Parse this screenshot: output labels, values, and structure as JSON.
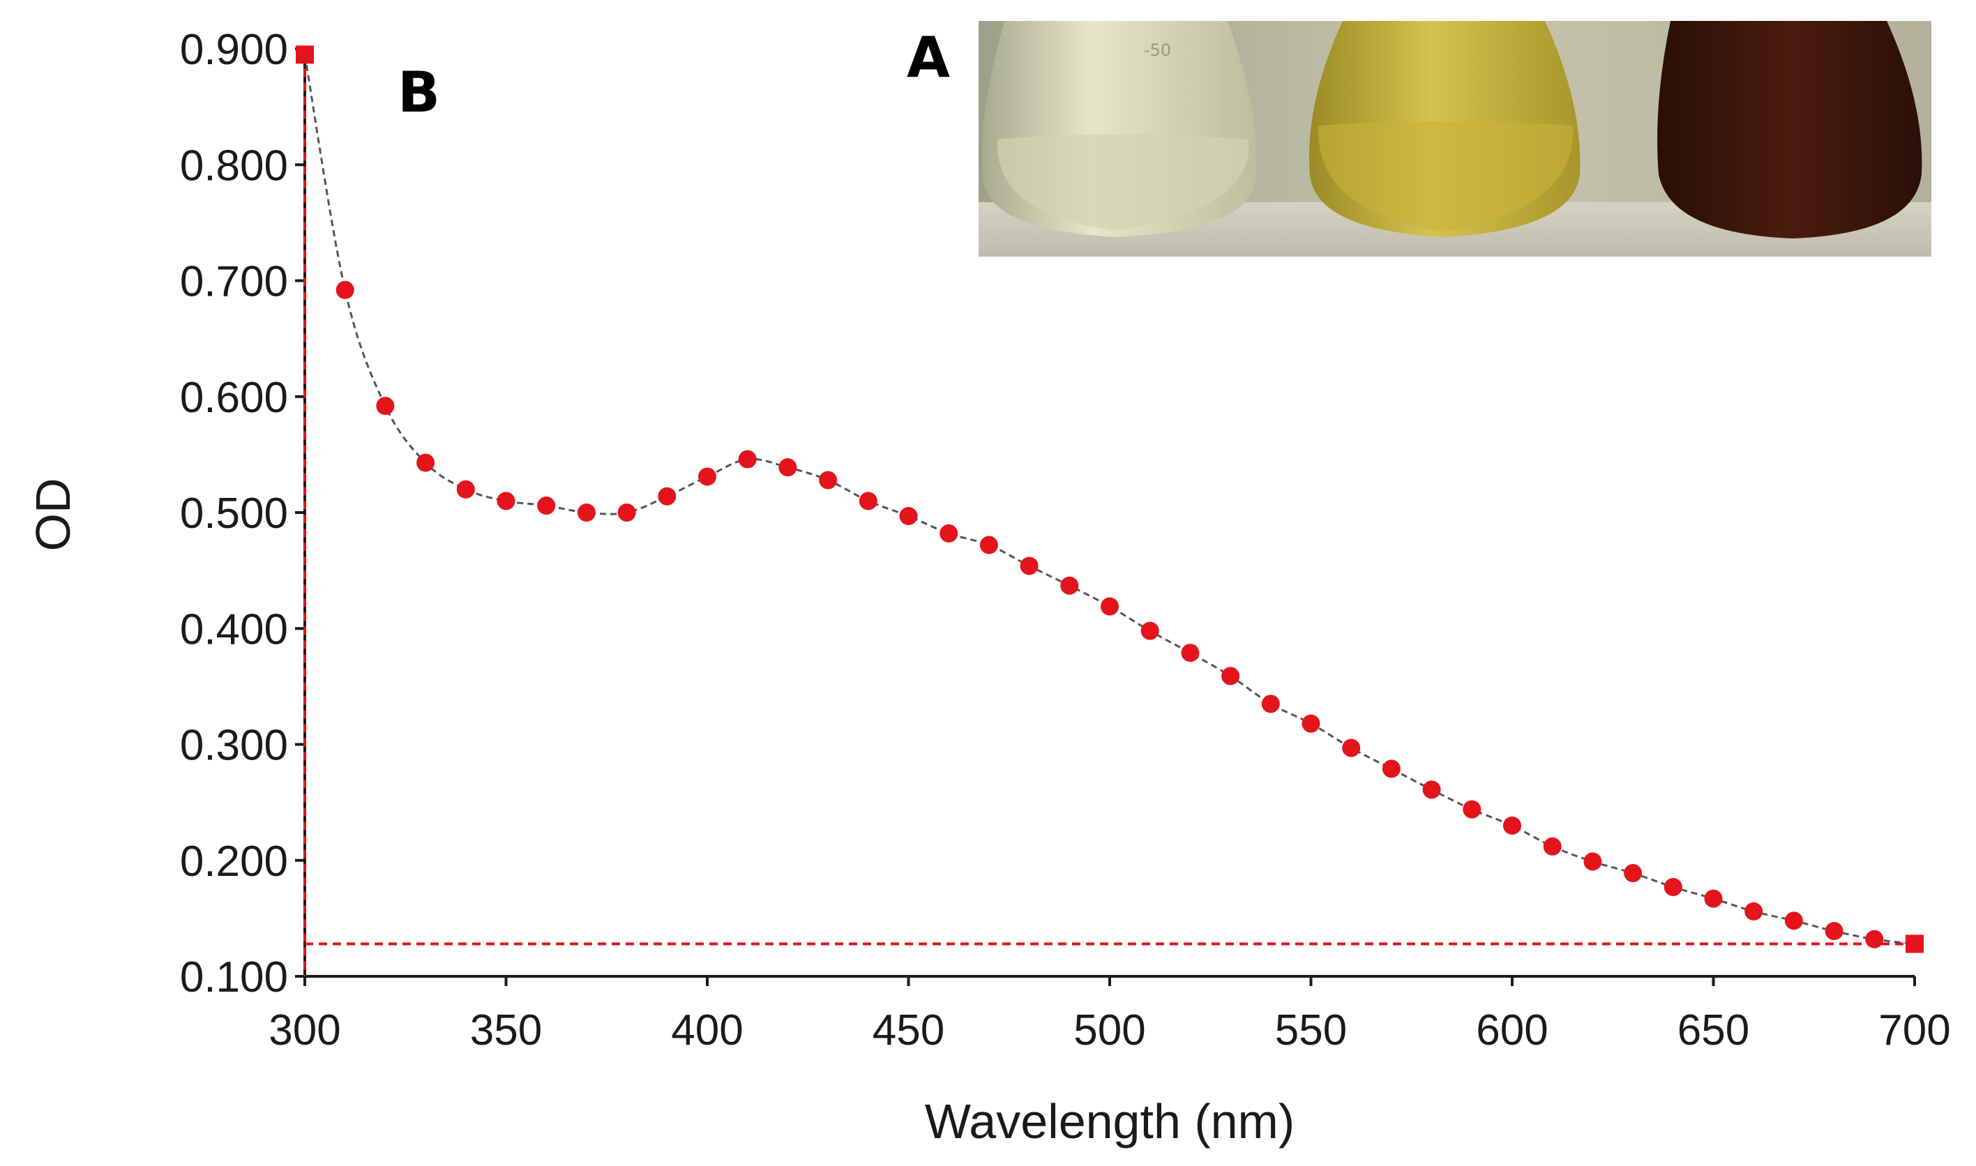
{
  "chart_data": {
    "type": "scatter",
    "title": "",
    "xlabel": "Wavelength (nm)",
    "ylabel": "OD",
    "xlim": [
      300,
      700
    ],
    "ylim": [
      0.1,
      0.9
    ],
    "xticks": [
      "300",
      "350",
      "400",
      "450",
      "500",
      "550",
      "600",
      "650",
      "700"
    ],
    "yticks": [
      "0.100",
      "0.200",
      "0.300",
      "0.400",
      "0.500",
      "0.600",
      "0.700",
      "0.800",
      "0.900"
    ],
    "series": [
      {
        "name": "OD",
        "x": [
          300,
          310,
          320,
          330,
          340,
          350,
          360,
          370,
          380,
          390,
          400,
          410,
          420,
          430,
          440,
          450,
          460,
          470,
          480,
          490,
          500,
          510,
          520,
          530,
          540,
          550,
          560,
          570,
          580,
          590,
          600,
          610,
          620,
          630,
          640,
          650,
          660,
          670,
          680,
          690,
          700
        ],
        "y": [
          0.895,
          0.692,
          0.592,
          0.543,
          0.52,
          0.51,
          0.506,
          0.5,
          0.5,
          0.514,
          0.531,
          0.546,
          0.539,
          0.528,
          0.51,
          0.497,
          0.482,
          0.472,
          0.454,
          0.437,
          0.419,
          0.398,
          0.379,
          0.359,
          0.335,
          0.318,
          0.297,
          0.279,
          0.261,
          0.244,
          0.23,
          0.212,
          0.199,
          0.189,
          0.177,
          0.167,
          0.156,
          0.148,
          0.139,
          0.132,
          0.128
        ]
      }
    ],
    "markers": {
      "start": {
        "x": 300,
        "y": 0.895
      },
      "end": {
        "x": 700,
        "y": 0.128
      }
    },
    "colors": {
      "marker": "#e3141b",
      "guide": "#e3141b",
      "curve": "#555555",
      "axis": "#1a1a1a"
    }
  },
  "labels": {
    "panel_b": "B",
    "panel_a": "A"
  },
  "inset_photo": {
    "description_flasks": [
      "clear",
      "yellow",
      "brown"
    ],
    "colors": [
      "#d8d8b4",
      "#c4b036",
      "#3c160c"
    ],
    "flask_label": "-50"
  }
}
